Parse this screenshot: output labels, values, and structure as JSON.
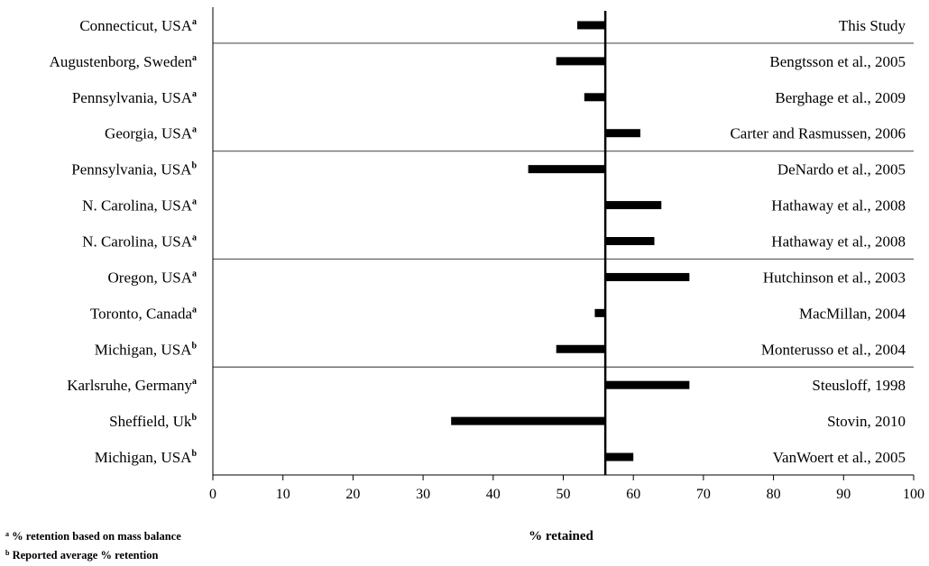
{
  "chart_data": {
    "type": "bar",
    "xlabel": "% retained",
    "xlim": [
      0,
      100
    ],
    "x_ticks": [
      "0",
      "10",
      "20",
      "30",
      "40",
      "50",
      "60",
      "70",
      "80",
      "90",
      "100"
    ],
    "reference_value": 56,
    "grid": false,
    "rows": [
      {
        "location": "Connecticut, USA",
        "note": "a",
        "study": "This Study",
        "value": 52
      },
      {
        "location": "Augustenborg, Sweden",
        "note": "a",
        "study": "Bengtsson et al., 2005",
        "value": 49
      },
      {
        "location": "Pennsylvania, USA",
        "note": "a",
        "study": "Berghage et al., 2009",
        "value": 53
      },
      {
        "location": "Georgia, USA",
        "note": "a",
        "study": "Carter and Rasmussen, 2006",
        "value": 61
      },
      {
        "location": "Pennsylvania, USA",
        "note": "b",
        "study": "DeNardo et al., 2005",
        "value": 45
      },
      {
        "location": "N. Carolina, USA",
        "note": "a",
        "study": "Hathaway et al., 2008",
        "value": 64
      },
      {
        "location": "N. Carolina, USA",
        "note": "a",
        "study": "Hathaway et al., 2008",
        "value": 63
      },
      {
        "location": "Oregon, USA",
        "note": "a",
        "study": "Hutchinson et al., 2003",
        "value": 68
      },
      {
        "location": "Toronto, Canada",
        "note": "a",
        "study": "MacMillan, 2004",
        "value": 54.5
      },
      {
        "location": "Michigan, USA",
        "note": "b",
        "study": "Monterusso et al., 2004",
        "value": 49
      },
      {
        "location": "Karlsruhe, Germany",
        "note": "a",
        "study": "Steusloff, 1998",
        "value": 68
      },
      {
        "location": "Sheffield, Uk",
        "note": "b",
        "study": "Stovin, 2010",
        "value": 34
      },
      {
        "location": "Michigan, USA",
        "note": "b",
        "study": "VanWoert et al., 2005",
        "value": 60
      }
    ],
    "group_separators_after_rows": [
      1,
      4,
      7,
      10
    ]
  },
  "footnotes": {
    "a_marker": "a",
    "a_text": "% retention based on mass balance",
    "b_marker": "b",
    "b_text": "Reported average % retention"
  }
}
